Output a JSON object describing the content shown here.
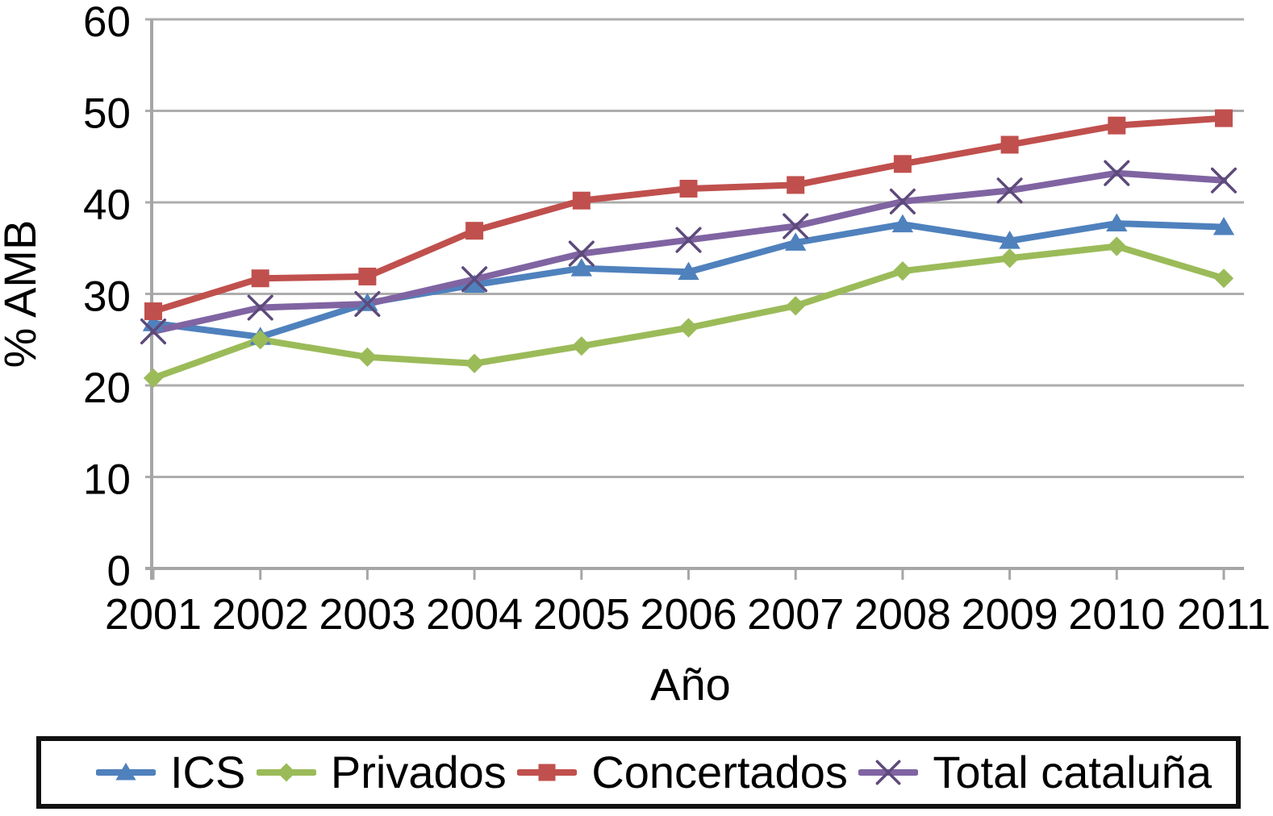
{
  "chart_data": {
    "type": "line",
    "title": "",
    "xlabel": "Año",
    "ylabel": "% AMB",
    "x": [
      "2001",
      "2002",
      "2003",
      "2004",
      "2005",
      "2006",
      "2007",
      "2008",
      "2009",
      "2010",
      "2011"
    ],
    "ylim": [
      0,
      60
    ],
    "yticks": [
      0,
      10,
      20,
      30,
      40,
      50,
      60
    ],
    "grid": true,
    "legend_position": "bottom",
    "axis_color": "#A6A6A6",
    "grid_color": "#ADADAD",
    "series": [
      {
        "name": "ICS",
        "color": "#4F81BD",
        "marker": "triangle",
        "values": [
          26.8,
          25.3,
          29.0,
          31.0,
          32.8,
          32.4,
          35.6,
          37.6,
          35.8,
          37.7,
          37.3
        ]
      },
      {
        "name": "Privados",
        "color": "#9BBB59",
        "marker": "diamond",
        "values": [
          20.8,
          25.0,
          23.1,
          22.4,
          24.3,
          26.3,
          28.7,
          32.5,
          33.9,
          35.2,
          31.7
        ]
      },
      {
        "name": "Concertados",
        "color": "#C0504D",
        "marker": "square",
        "values": [
          28.1,
          31.7,
          31.9,
          36.9,
          40.2,
          41.5,
          41.9,
          44.2,
          46.3,
          48.4,
          49.2
        ]
      },
      {
        "name": "Total cataluña",
        "color": "#8064A2",
        "marker": "x",
        "marker_color": "#5D4A7B",
        "values": [
          25.9,
          28.5,
          28.9,
          31.6,
          34.4,
          35.9,
          37.4,
          40.1,
          41.3,
          43.2,
          42.4
        ]
      }
    ]
  }
}
